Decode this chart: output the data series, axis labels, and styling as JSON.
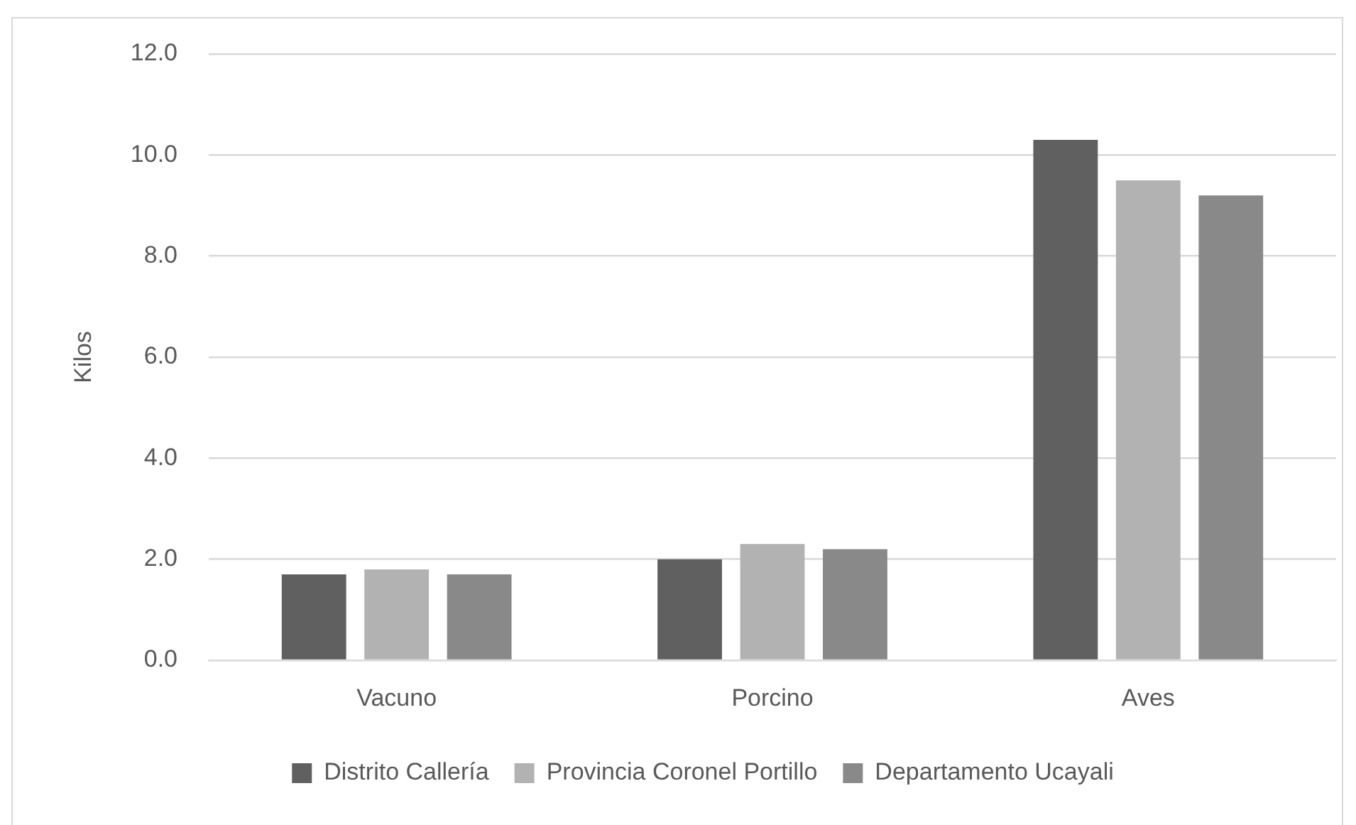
{
  "chart_data": {
    "type": "bar",
    "ylabel": "Kilos",
    "categories": [
      "Vacuno",
      "Porcino",
      "Aves"
    ],
    "series": [
      {
        "name": "Distrito Callería",
        "color": "#606060",
        "values": [
          1.7,
          2.0,
          10.3
        ]
      },
      {
        "name": "Provincia Coronel Portillo",
        "color": "#b2b2b2",
        "values": [
          1.8,
          2.3,
          9.5
        ]
      },
      {
        "name": "Departamento Ucayali",
        "color": "#898989",
        "values": [
          1.7,
          2.2,
          9.2
        ]
      }
    ],
    "ylim": [
      0,
      12
    ],
    "yticks": [
      {
        "value": 0,
        "label": "0.0"
      },
      {
        "value": 2,
        "label": "2.0"
      },
      {
        "value": 4,
        "label": "4.0"
      },
      {
        "value": 6,
        "label": "6.0"
      },
      {
        "value": 8,
        "label": "8.0"
      },
      {
        "value": 10,
        "label": "10.0"
      },
      {
        "value": 12,
        "label": "12.0"
      }
    ],
    "grid": "y",
    "legend": "bottom"
  }
}
